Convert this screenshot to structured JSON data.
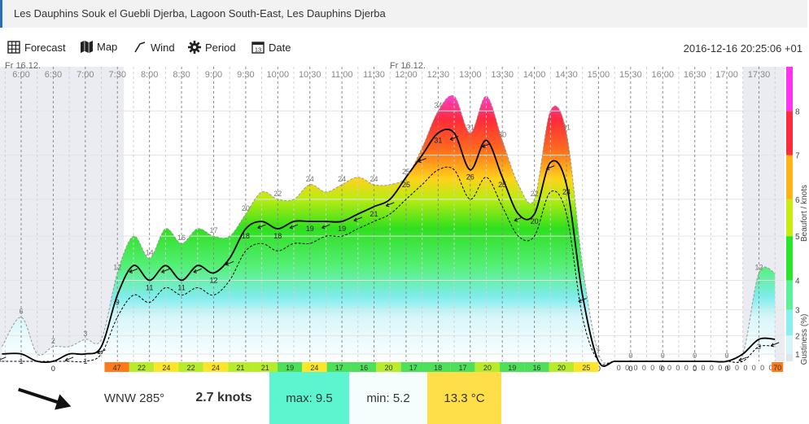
{
  "header": {
    "title": "Les Dauphins Souk el Guebli Djerba, Lagoon South-East, Les Dauphins Djerba"
  },
  "toolbar": {
    "forecast": "Forecast",
    "map": "Map",
    "wind": "Wind",
    "period": "Period",
    "date": "Date",
    "date_icon_day": "13",
    "timestamp": "2016-12-16 20:25:06 +01"
  },
  "chart_data": {
    "type": "area",
    "day_labels": [
      "Fr 16.12.",
      "Fr 16.12."
    ],
    "time_labels": [
      "6:00",
      "6:30",
      "7:00",
      "7:30",
      "8:00",
      "8:30",
      "9:00",
      "9:30",
      "10:00",
      "10:30",
      "11:00",
      "11:30",
      "12:00",
      "12:30",
      "13:00",
      "13:30",
      "14:00",
      "14:30",
      "15:00",
      "15:30",
      "16:00",
      "16:30",
      "17:00",
      "17:30"
    ],
    "x_hours": [
      5.7,
      6.0,
      6.25,
      6.5,
      6.75,
      7.0,
      7.25,
      7.5,
      7.75,
      8.0,
      8.25,
      8.5,
      8.75,
      9.0,
      9.25,
      9.5,
      9.75,
      10.0,
      10.25,
      10.5,
      10.75,
      11.0,
      11.25,
      11.5,
      11.75,
      12.0,
      12.25,
      12.5,
      12.75,
      13.0,
      13.25,
      13.5,
      13.75,
      14.0,
      14.25,
      14.5,
      14.75,
      15.0,
      15.25,
      15.5,
      15.75,
      16.0,
      16.25,
      16.5,
      16.75,
      17.0,
      17.25,
      17.5,
      17.75
    ],
    "gust": [
      2,
      6,
      1,
      2,
      2,
      3,
      3,
      12,
      17,
      14,
      18,
      16,
      18,
      17,
      17,
      20,
      23,
      22,
      22,
      24,
      23,
      24,
      25,
      24,
      24,
      25,
      29,
      34,
      36,
      31,
      36,
      30,
      24,
      22,
      34,
      31,
      13,
      1,
      0,
      0,
      0,
      0,
      0,
      0,
      0,
      0,
      1,
      12,
      12
    ],
    "wind": [
      1,
      1,
      0,
      0,
      1,
      1,
      2,
      9,
      13,
      11,
      13,
      11,
      13,
      12,
      14,
      18,
      19,
      18,
      19,
      19,
      19,
      19,
      20,
      21,
      22,
      25,
      28,
      31,
      31,
      26,
      30,
      25,
      20,
      20,
      27,
      24,
      9,
      0,
      0,
      0,
      0,
      0,
      0,
      0,
      0,
      0,
      1,
      3,
      3
    ],
    "lull": [
      0,
      0,
      0,
      0,
      0,
      0,
      1,
      6,
      9,
      8,
      10,
      9,
      10,
      9,
      11,
      15,
      16,
      15,
      16,
      16,
      17,
      17,
      18,
      19,
      20,
      22,
      24,
      26,
      26,
      22,
      25,
      21,
      17,
      17,
      23,
      20,
      6,
      0,
      0,
      0,
      0,
      0,
      0,
      0,
      0,
      0,
      0,
      2,
      2
    ],
    "gustiness": [
      "47",
      "22",
      "24",
      "22",
      "24",
      "21",
      "21",
      "19",
      "24",
      "17",
      "16",
      "20",
      "17",
      "18",
      "17",
      "20",
      "19",
      "16",
      "20",
      "25"
    ],
    "bottom_zeros": [
      "0",
      "0",
      "0",
      "0",
      "0",
      "0",
      "0",
      "0",
      "0",
      "0",
      "0",
      "0",
      "0",
      "0",
      "0",
      "0",
      "0",
      "0",
      "0"
    ],
    "tail_gustiness": "70",
    "beaufort_ticks": [
      "1",
      "2",
      "3",
      "4",
      "5",
      "6",
      "7",
      "8"
    ],
    "ylabel": "Beaufort / knots",
    "ylabel2": "Gustiness (%)",
    "ylim": [
      0,
      40
    ],
    "colors": {
      "night": "#ebebf2",
      "gust_line": "#999999",
      "wind_line": "#000000"
    }
  },
  "footer": {
    "direction": "WNW 285°",
    "speed": "2.7 knots",
    "max": "max: 9.5",
    "min": "min: 5.2",
    "temp": "13.3 °C",
    "max_color": "#5cf5cf",
    "min_color": "#f5fefc",
    "temp_color": "#fede49"
  }
}
